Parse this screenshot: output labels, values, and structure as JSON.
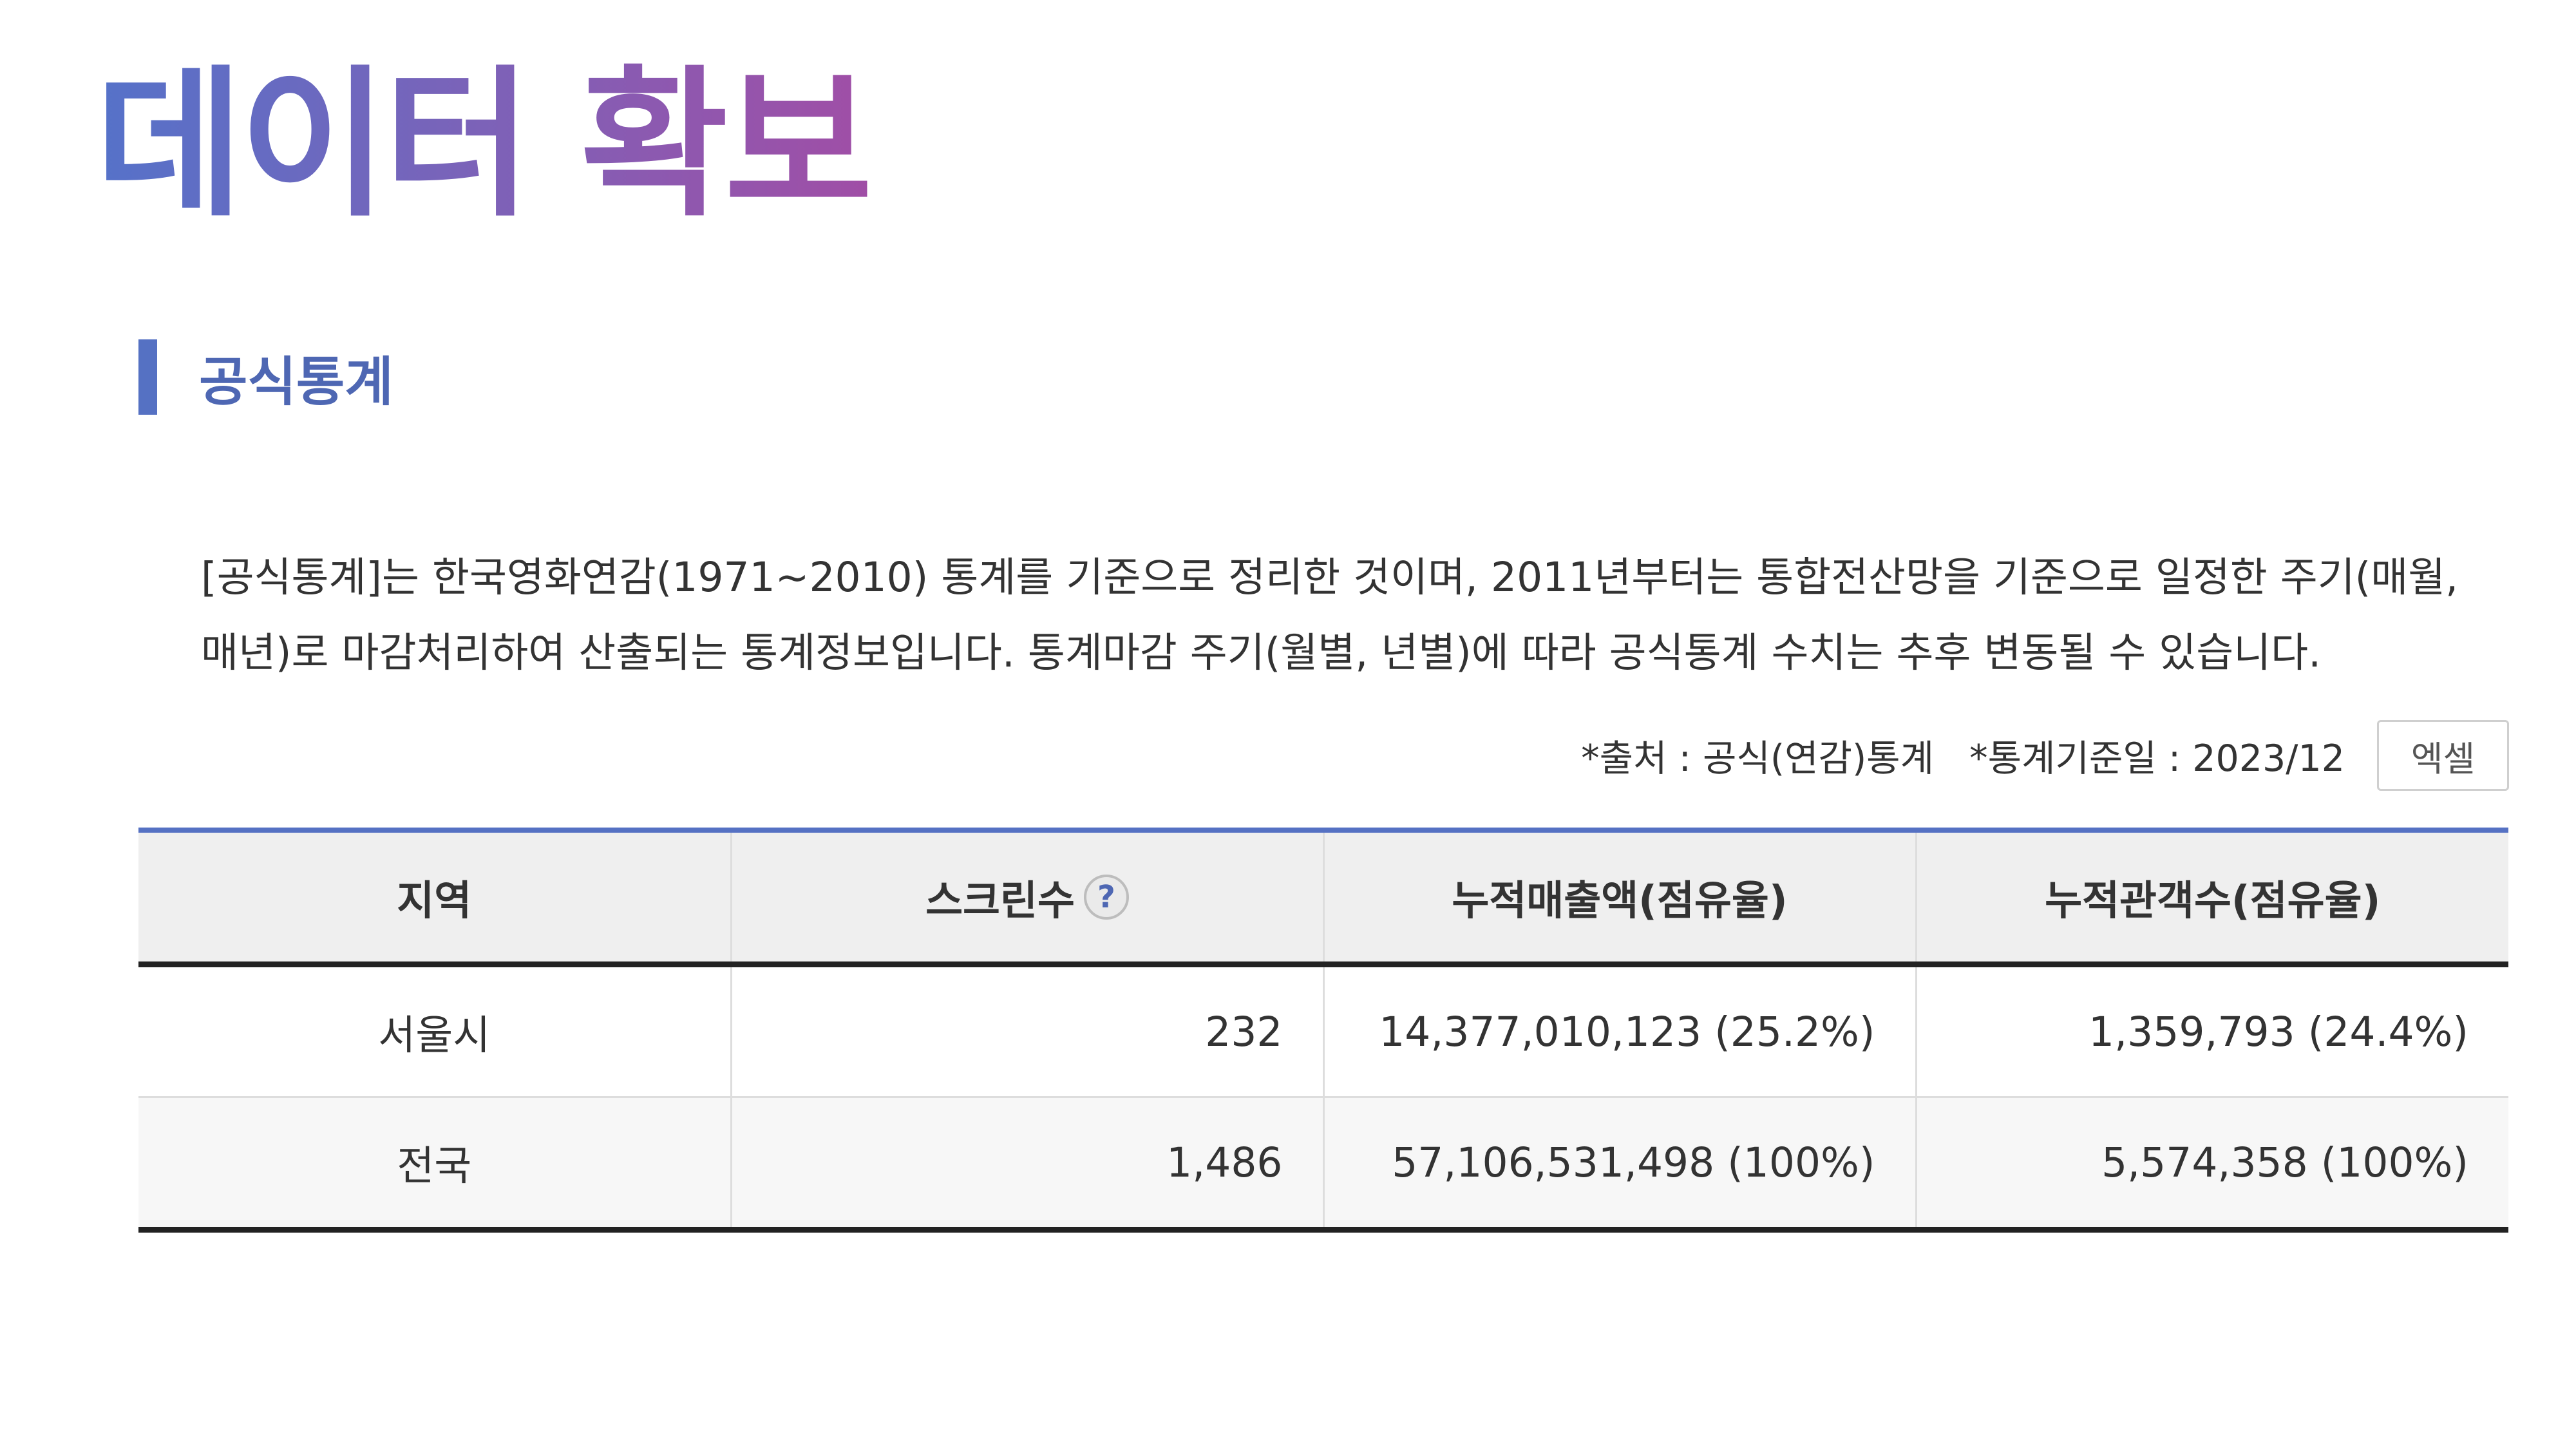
{
  "page": {
    "title": "데이터 확보"
  },
  "section": {
    "title": "공식통계",
    "description_lines": [
      "[공식통계]는 한국영화연감(1971~2010) 통계를 기준으로 정리한 것이며, 2011년부터는 통합전산망을 기준으로 일정한 주기(매월,",
      "매년)로 마감처리하여 산출되는 통계정보입니다. 통계마감 주기(월별, 년별)에 따라 공식통계 수치는 추후 변동될 수 있습니다."
    ],
    "source_note": "*출처 : 공식(연감)통계",
    "date_note": "*통계기준일 : 2023/12",
    "excel_button_label": "엑셀"
  },
  "table": {
    "headers": [
      "지역",
      "스크린수",
      "누적매출액(점유율)",
      "누적관객수(점유율)"
    ],
    "help_icon_glyph": "?",
    "rows": [
      [
        "서울시",
        "232",
        "14,377,010,123 (25.2%)",
        "1,359,793 (24.4%)"
      ],
      [
        "전국",
        "1,486",
        "57,106,531,498 (100%)",
        "5,574,358 (100%)"
      ]
    ]
  },
  "colors": {
    "title_gradient": [
      "#5572c9",
      "#a04ea6"
    ],
    "accent": "#5571c3",
    "section_title": "#4e67b3"
  },
  "icons": {
    "help": "question-mark-circle-icon"
  }
}
